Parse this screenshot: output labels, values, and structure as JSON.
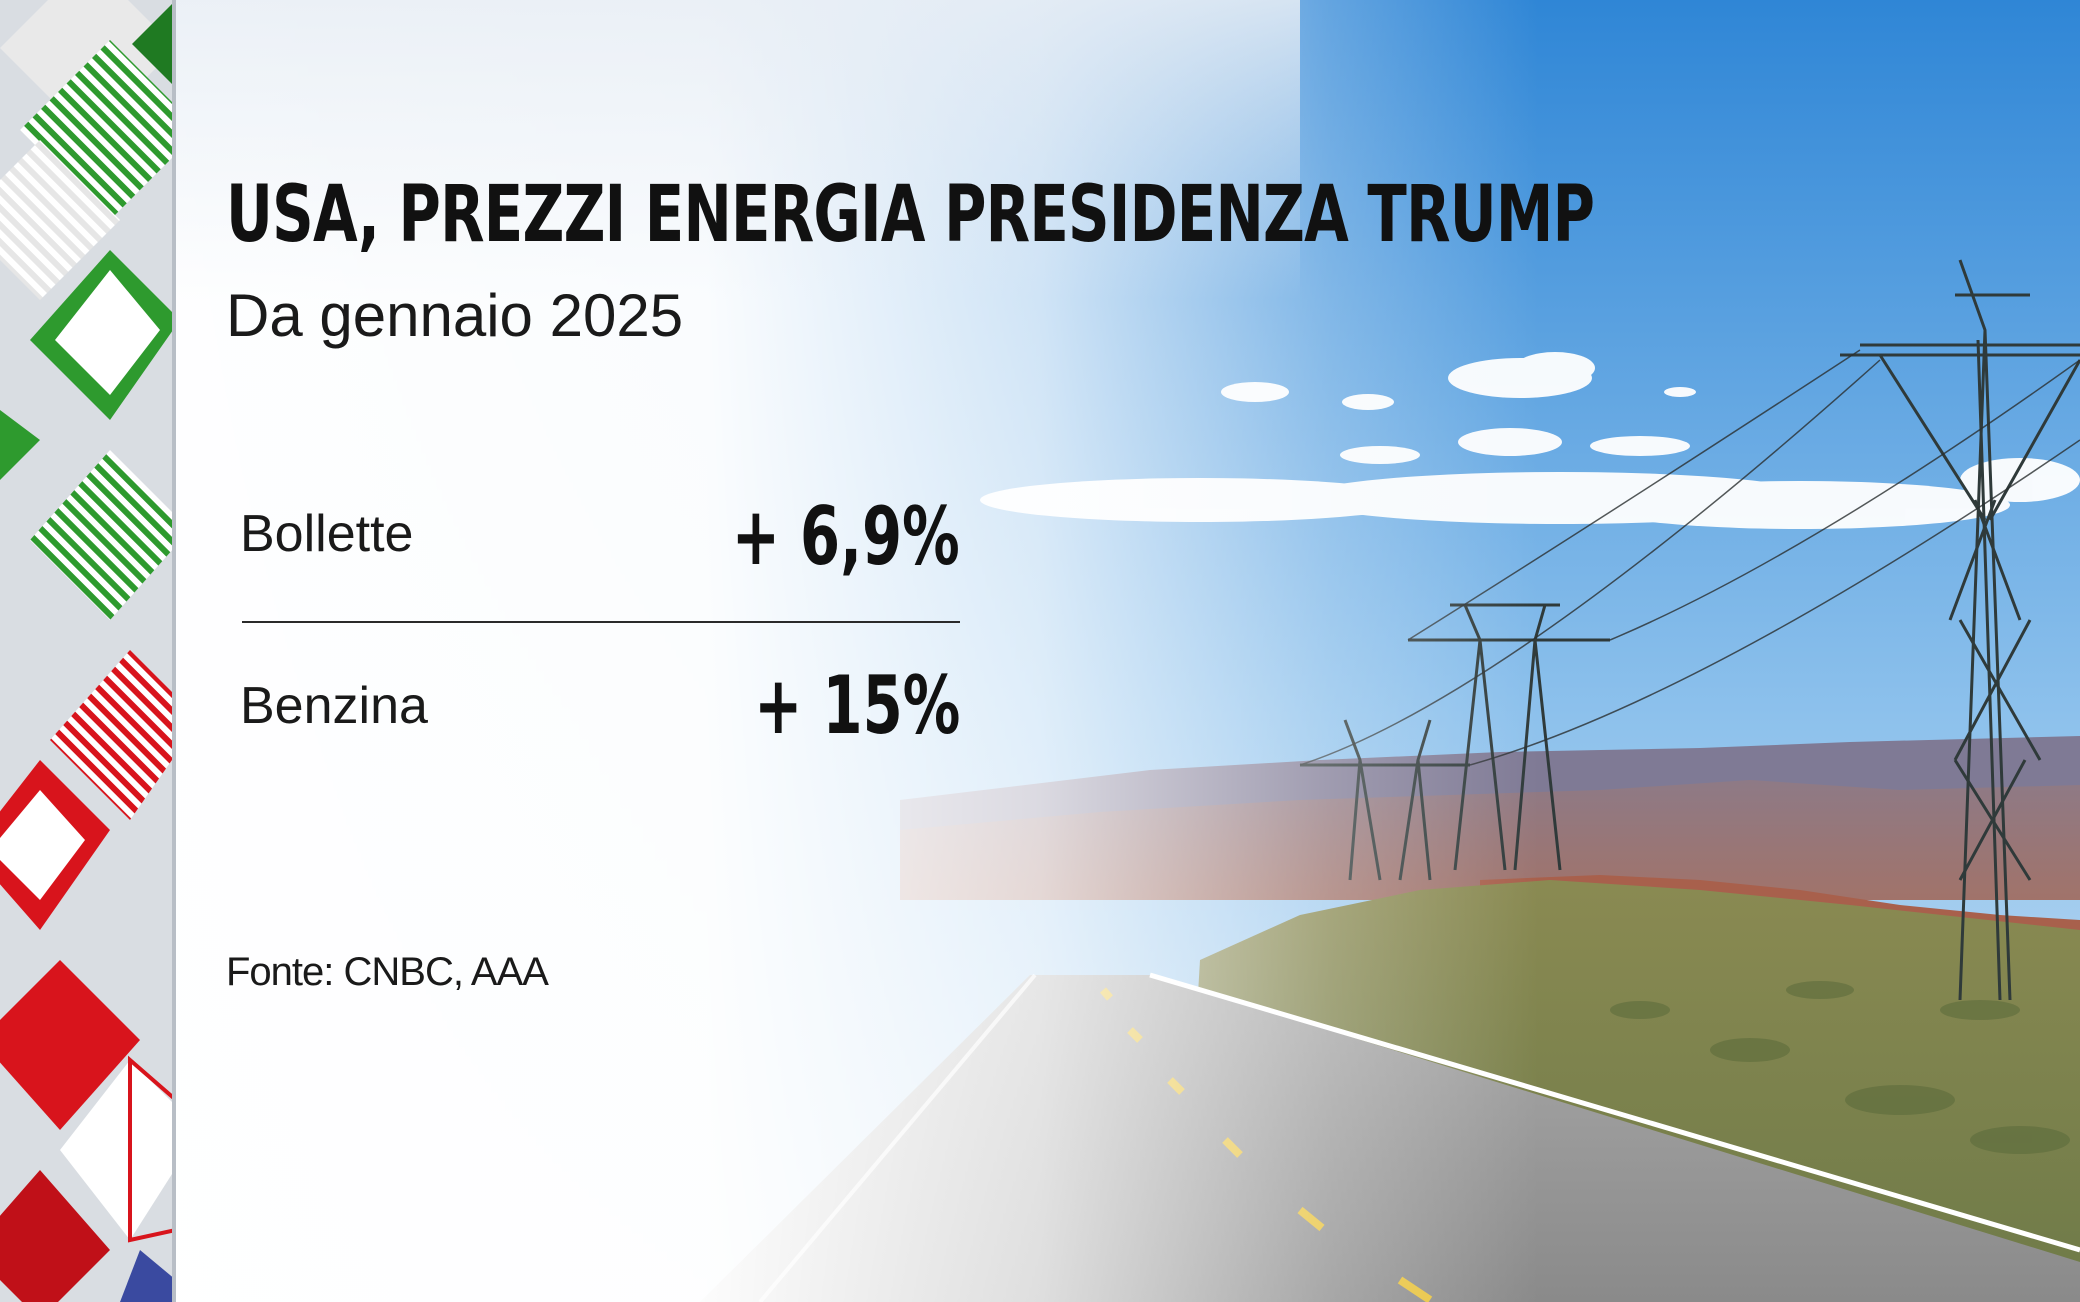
{
  "header": {
    "title": "USA, PREZZI ENERGIA PRESIDENZA TRUMP",
    "subtitle": "Da gennaio 2025"
  },
  "rows": [
    {
      "label": "Bollette",
      "value": "+ 6,9%"
    },
    {
      "label": "Benzina",
      "value": "+ 15%"
    }
  ],
  "footer": {
    "source": "Fonte: CNBC, AAA"
  },
  "colors": {
    "text": "#111111",
    "sky": "#3f8fd8",
    "stripe_green": "#2e9a2e",
    "stripe_red": "#d8141c"
  }
}
